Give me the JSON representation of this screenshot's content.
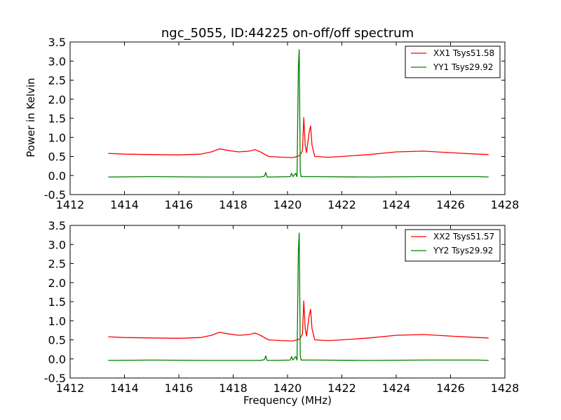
{
  "chart_data": [
    {
      "type": "line",
      "title": "ngc_5055, ID:44225 on-off/off spectrum",
      "xlabel": "",
      "ylabel": "Power in Kelvin",
      "xlim": [
        1412,
        1428
      ],
      "ylim": [
        -0.5,
        3.5
      ],
      "xticks": [
        1412,
        1414,
        1416,
        1418,
        1420,
        1422,
        1424,
        1426,
        1428
      ],
      "yticks": [
        -0.5,
        0.0,
        0.5,
        1.0,
        1.5,
        2.0,
        2.5,
        3.0,
        3.5
      ],
      "legend_position": "top-right",
      "grid": false,
      "series": [
        {
          "name": "XX1 Tsys51.58",
          "color": "#ff0000",
          "x": [
            1413.4,
            1414.0,
            1415.0,
            1416.0,
            1416.8,
            1417.2,
            1417.5,
            1417.8,
            1418.2,
            1418.6,
            1418.8,
            1419.0,
            1419.3,
            1419.8,
            1420.2,
            1420.45,
            1420.55,
            1420.6,
            1420.65,
            1420.7,
            1420.8,
            1420.85,
            1420.9,
            1421.0,
            1421.5,
            1422.0,
            1423.0,
            1424.0,
            1425.0,
            1426.0,
            1427.0,
            1427.4
          ],
          "y": [
            0.58,
            0.56,
            0.55,
            0.54,
            0.56,
            0.62,
            0.7,
            0.66,
            0.62,
            0.64,
            0.68,
            0.62,
            0.5,
            0.48,
            0.47,
            0.52,
            0.65,
            1.52,
            0.8,
            0.6,
            1.15,
            1.3,
            0.8,
            0.5,
            0.48,
            0.5,
            0.55,
            0.62,
            0.64,
            0.6,
            0.56,
            0.55
          ]
        },
        {
          "name": "YY1 Tsys29.92",
          "color": "#008000",
          "x": [
            1413.4,
            1415.0,
            1417.0,
            1419.0,
            1419.15,
            1419.2,
            1419.25,
            1419.4,
            1420.1,
            1420.15,
            1420.2,
            1420.3,
            1420.35,
            1420.4,
            1420.43,
            1420.47,
            1420.5,
            1421.0,
            1423.0,
            1425.0,
            1427.0,
            1427.4
          ],
          "y": [
            -0.04,
            -0.03,
            -0.04,
            -0.04,
            -0.02,
            0.08,
            -0.04,
            -0.04,
            -0.03,
            0.06,
            -0.03,
            0.06,
            -0.03,
            2.85,
            3.3,
            0.1,
            -0.03,
            -0.03,
            -0.04,
            -0.03,
            -0.03,
            -0.04
          ]
        }
      ]
    },
    {
      "type": "line",
      "title": "",
      "xlabel": "Frequency (MHz)",
      "ylabel": "",
      "xlim": [
        1412,
        1428
      ],
      "ylim": [
        -0.5,
        3.5
      ],
      "xticks": [
        1412,
        1414,
        1416,
        1418,
        1420,
        1422,
        1424,
        1426,
        1428
      ],
      "yticks": [
        -0.5,
        0.0,
        0.5,
        1.0,
        1.5,
        2.0,
        2.5,
        3.0,
        3.5
      ],
      "legend_position": "top-right",
      "grid": false,
      "series": [
        {
          "name": "XX2 Tsys51.57",
          "color": "#ff0000",
          "x": [
            1413.4,
            1414.0,
            1415.0,
            1416.0,
            1416.8,
            1417.2,
            1417.5,
            1417.8,
            1418.2,
            1418.6,
            1418.8,
            1419.0,
            1419.3,
            1419.8,
            1420.2,
            1420.45,
            1420.55,
            1420.6,
            1420.65,
            1420.7,
            1420.8,
            1420.85,
            1420.9,
            1421.0,
            1421.5,
            1422.0,
            1423.0,
            1424.0,
            1425.0,
            1426.0,
            1427.0,
            1427.4
          ],
          "y": [
            0.58,
            0.56,
            0.55,
            0.54,
            0.56,
            0.62,
            0.7,
            0.66,
            0.62,
            0.64,
            0.68,
            0.62,
            0.5,
            0.48,
            0.47,
            0.52,
            0.65,
            1.52,
            0.8,
            0.6,
            1.15,
            1.3,
            0.8,
            0.5,
            0.48,
            0.5,
            0.55,
            0.62,
            0.64,
            0.6,
            0.56,
            0.55
          ]
        },
        {
          "name": "YY2 Tsys29.92",
          "color": "#008000",
          "x": [
            1413.4,
            1415.0,
            1417.0,
            1419.0,
            1419.15,
            1419.2,
            1419.25,
            1419.4,
            1420.1,
            1420.15,
            1420.2,
            1420.3,
            1420.35,
            1420.4,
            1420.43,
            1420.47,
            1420.5,
            1421.0,
            1423.0,
            1425.0,
            1427.0,
            1427.4
          ],
          "y": [
            -0.04,
            -0.03,
            -0.04,
            -0.04,
            -0.02,
            0.08,
            -0.04,
            -0.04,
            -0.03,
            0.06,
            -0.03,
            0.06,
            -0.03,
            2.85,
            3.3,
            0.1,
            -0.03,
            -0.03,
            -0.04,
            -0.03,
            -0.03,
            -0.04
          ]
        }
      ]
    }
  ]
}
